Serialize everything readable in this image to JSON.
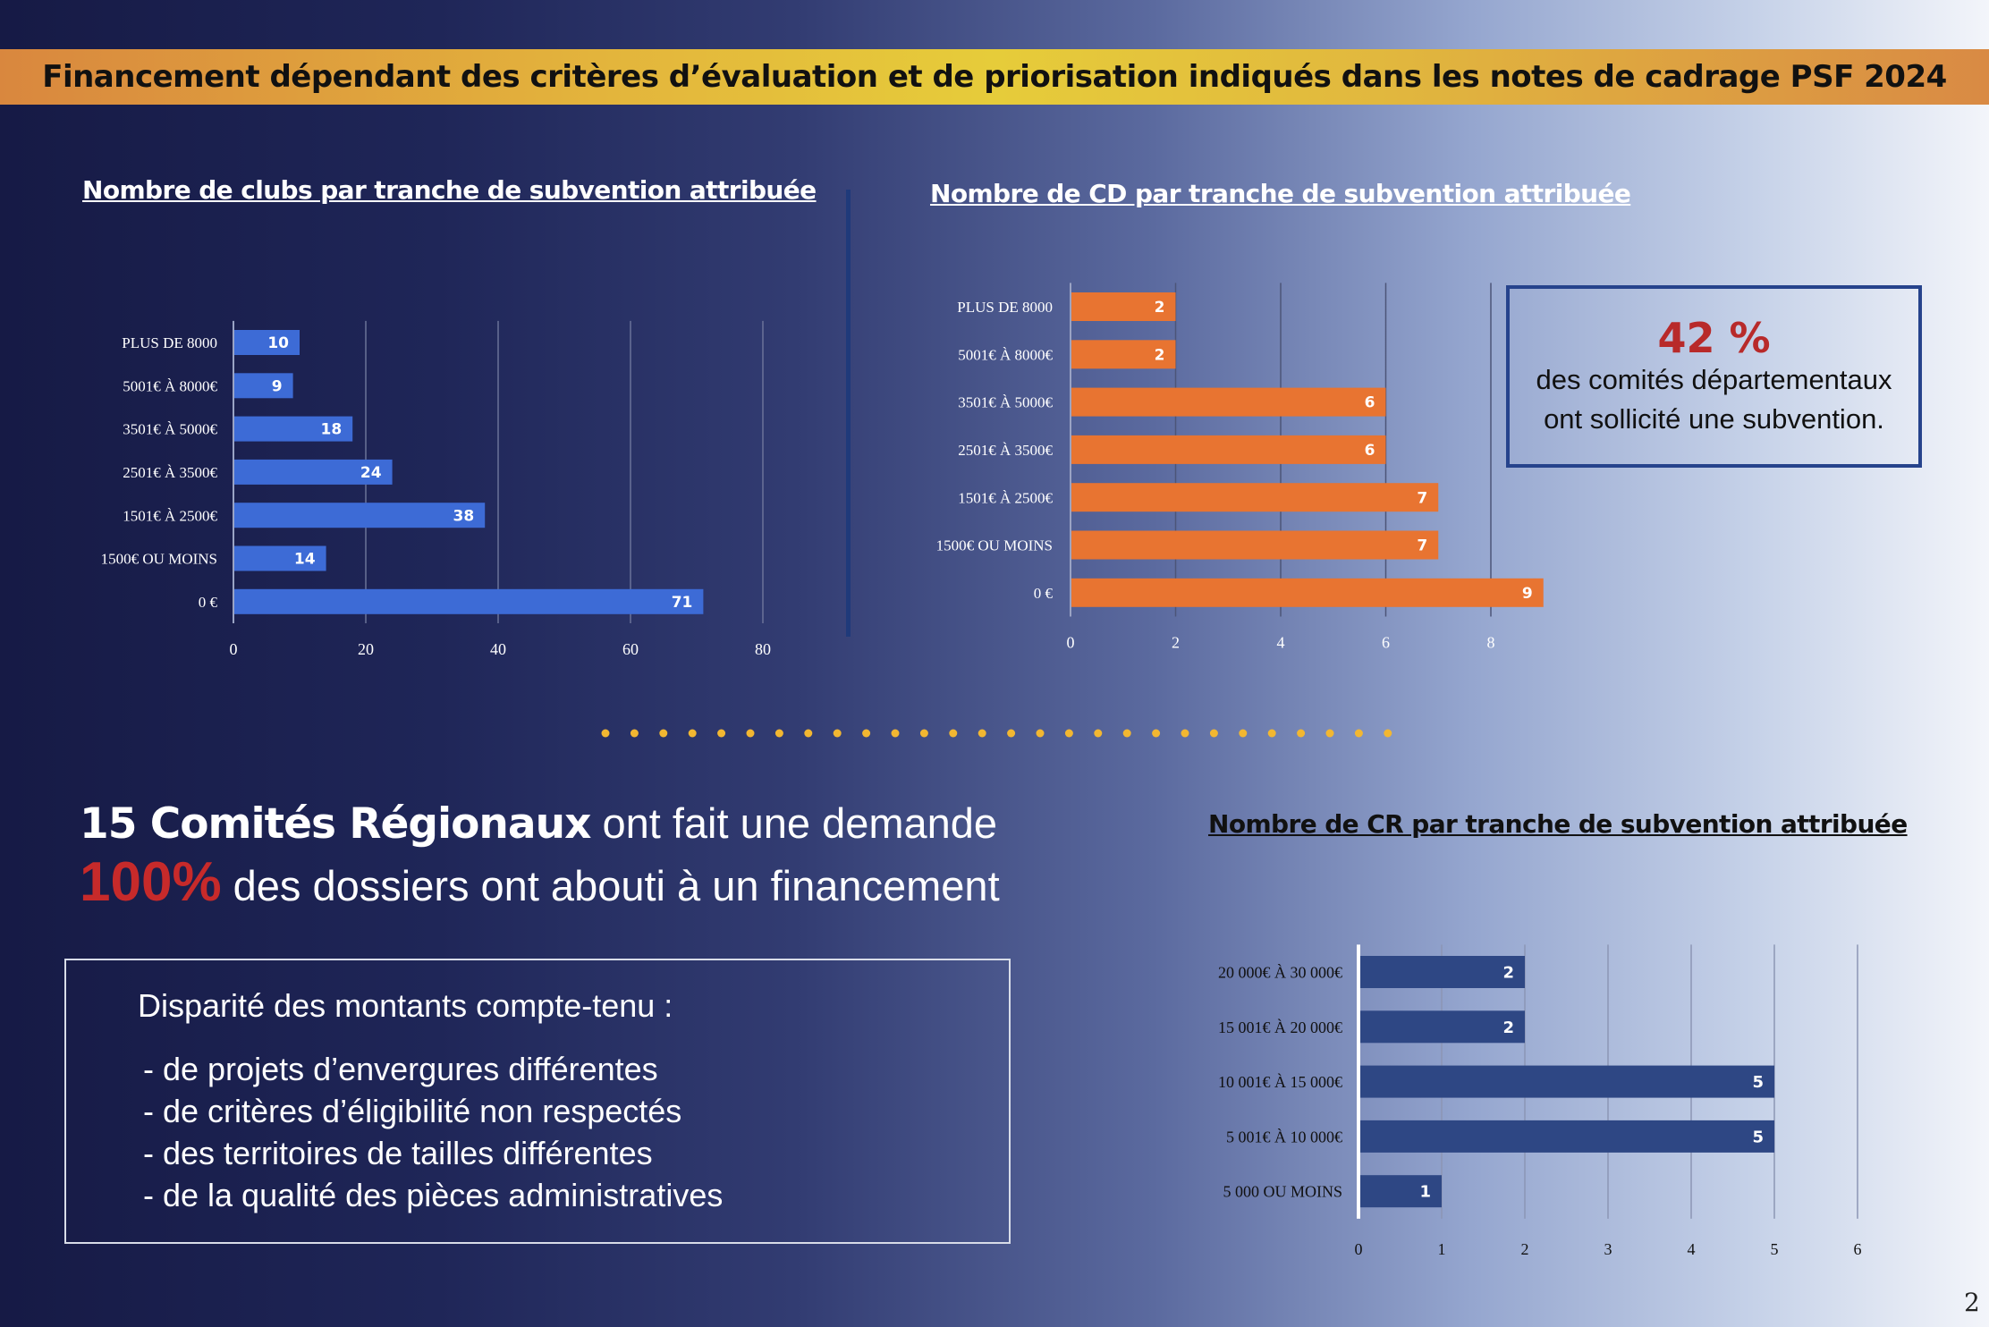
{
  "banner": {
    "text": "Financement dépendant des critères d’évaluation et de priorisation indiqués dans les notes de cadrage PSF 2024"
  },
  "chart_data": [
    {
      "type": "bar",
      "orientation": "horizontal",
      "title": "Nombre de clubs par tranche de subvention attribuée",
      "categories": [
        "PLUS DE 8000",
        "5001€ À 8000€",
        "3501€ À 5000€",
        "2501€ À 3500€",
        "1501€ À 2500€",
        "1500€ OU MOINS",
        "0 €"
      ],
      "values": [
        10,
        9,
        18,
        24,
        38,
        14,
        71
      ],
      "xlim": [
        0,
        80
      ],
      "xticks": [
        0,
        20,
        40,
        60,
        80
      ],
      "bar_color": "#3d6bd6",
      "grid": true
    },
    {
      "type": "bar",
      "orientation": "horizontal",
      "title": "Nombre de CD par tranche de subvention attribuée",
      "categories": [
        "PLUS DE 8000",
        "5001€ À 8000€",
        "3501€ À 5000€",
        "2501€ À 3500€",
        "1501€ À 2500€",
        "1500€ OU MOINS",
        "0 €"
      ],
      "values": [
        2,
        2,
        6,
        6,
        7,
        7,
        9
      ],
      "xlim": [
        0,
        8
      ],
      "xticks": [
        0,
        2,
        4,
        6,
        8
      ],
      "bar_color": "#e87431",
      "grid": true
    },
    {
      "type": "bar",
      "orientation": "horizontal",
      "title": "Nombre de CR par tranche de subvention attribuée",
      "categories": [
        "20 000€ À 30 000€",
        "15 001€ À 20 000€",
        "10 001€ À 15 000€",
        "5 001€ À 10 000€",
        "5 000 OU MOINS"
      ],
      "values": [
        2,
        2,
        5,
        5,
        1
      ],
      "xlim": [
        0,
        6
      ],
      "xticks": [
        0,
        1,
        2,
        3,
        4,
        5,
        6
      ],
      "bar_color": "#2e4784",
      "grid": true
    }
  ],
  "cd_stat": {
    "value": "42 %",
    "line1": "des comités départementaux",
    "line2": "ont sollicité une subvention."
  },
  "cr_stats": {
    "bold": "15 Comités Régionaux",
    "rest": " ont  fait une demande",
    "percent": "100%",
    "percent_rest": " des dossiers ont abouti à un financement"
  },
  "disparity": {
    "title": "Disparité des montants compte-tenu :",
    "items": [
      "- de projets d’envergures différentes",
      "- de critères d’éligibilité non respectés",
      "- des territoires de tailles différentes",
      "- de la qualité des pièces administratives"
    ]
  },
  "colors": {
    "accent_red": "#c72a2a",
    "dot_color": "#f2b731"
  },
  "page_number": "2"
}
